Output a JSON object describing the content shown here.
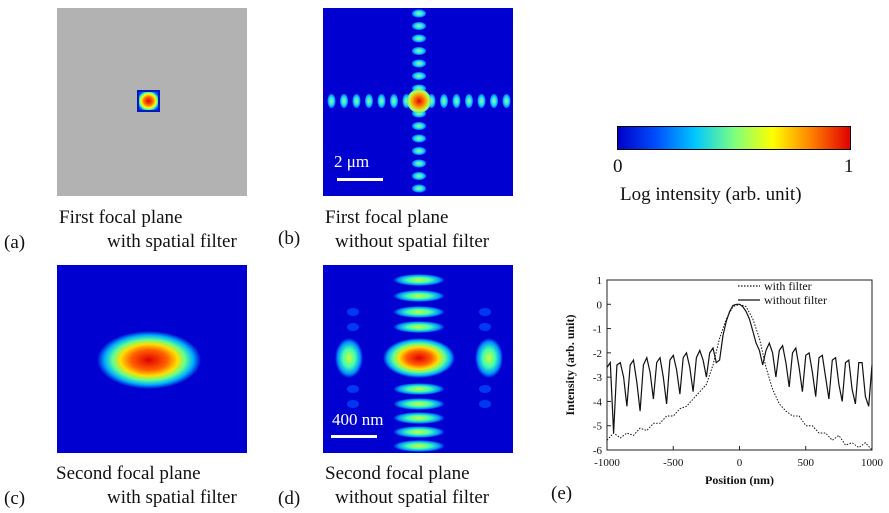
{
  "panels": {
    "a": {
      "tag": "(a)",
      "caption1": "First focal plane",
      "caption2": "with spatial filter"
    },
    "b": {
      "tag": "(b)",
      "caption1": "First focal plane",
      "caption2": "without spatial filter",
      "scale_label": "2 μm"
    },
    "c": {
      "tag": "(c)",
      "caption1": "Second focal plane",
      "caption2": "with spatial filter"
    },
    "d": {
      "tag": "(d)",
      "caption1": "Second focal plane",
      "caption2": "without spatial filter",
      "scale_label": "400 nm"
    },
    "e": {
      "tag": "(e)"
    }
  },
  "colorbar": {
    "min_label": "0",
    "max_label": "1",
    "title": "Log intensity (arb. unit)",
    "colors": [
      "#0000c8",
      "#0050ff",
      "#00c8ff",
      "#7cff80",
      "#ffff00",
      "#ff8000",
      "#e00000"
    ]
  },
  "chart_data": {
    "type": "line",
    "xlabel": "Position (nm)",
    "ylabel": "Intensity (arb. unit)",
    "xlim": [
      -1000,
      1000
    ],
    "ylim": [
      -6,
      1
    ],
    "xticks": [
      "-1000",
      "-500",
      "0",
      "500",
      "1000"
    ],
    "yticks": [
      "1",
      "0",
      "-1",
      "-2",
      "-3",
      "-4",
      "-5",
      "-6"
    ],
    "legend_position": "top-right",
    "series": [
      {
        "name": "with filter",
        "style": "dotted",
        "x": [
          -1000,
          -950,
          -900,
          -850,
          -800,
          -750,
          -700,
          -650,
          -600,
          -550,
          -500,
          -450,
          -400,
          -350,
          -300,
          -250,
          -200,
          -150,
          -100,
          -50,
          0,
          50,
          100,
          150,
          200,
          250,
          300,
          350,
          400,
          450,
          500,
          550,
          600,
          650,
          700,
          750,
          800,
          850,
          900,
          950,
          1000
        ],
        "values": [
          -5.6,
          -5.3,
          -5.5,
          -5.3,
          -5.4,
          -5.1,
          -5.2,
          -4.9,
          -4.9,
          -4.6,
          -4.6,
          -4.3,
          -4.2,
          -3.9,
          -3.6,
          -3.3,
          -2.5,
          -1.4,
          -0.6,
          -0.1,
          0,
          -0.1,
          -0.6,
          -1.4,
          -2.6,
          -3.5,
          -4.1,
          -4.4,
          -4.6,
          -4.6,
          -5.0,
          -5.0,
          -5.3,
          -5.3,
          -5.6,
          -5.4,
          -5.8,
          -5.7,
          -5.9,
          -5.7,
          -6.0
        ]
      },
      {
        "name": "without filter",
        "style": "solid",
        "x": [
          -1000,
          -975,
          -950,
          -925,
          -900,
          -875,
          -850,
          -825,
          -800,
          -775,
          -750,
          -725,
          -700,
          -675,
          -650,
          -625,
          -600,
          -575,
          -550,
          -525,
          -500,
          -475,
          -450,
          -425,
          -400,
          -375,
          -350,
          -325,
          -300,
          -275,
          -250,
          -225,
          -200,
          -175,
          -150,
          -125,
          -100,
          -75,
          -50,
          -25,
          0,
          25,
          50,
          75,
          100,
          125,
          150,
          175,
          200,
          225,
          250,
          275,
          300,
          325,
          350,
          375,
          400,
          425,
          450,
          475,
          500,
          525,
          550,
          575,
          600,
          625,
          650,
          675,
          700,
          725,
          750,
          775,
          800,
          825,
          850,
          875,
          900,
          925,
          950,
          975,
          1000
        ],
        "values": [
          -2.6,
          -2.4,
          -5.3,
          -2.5,
          -2.4,
          -3.0,
          -4.2,
          -2.5,
          -2.3,
          -3.2,
          -4.4,
          -2.5,
          -2.2,
          -2.8,
          -3.9,
          -2.4,
          -2.2,
          -3.0,
          -4.1,
          -2.3,
          -2.1,
          -2.7,
          -3.7,
          -2.2,
          -2.0,
          -2.6,
          -3.6,
          -2.2,
          -1.9,
          -2.3,
          -3.0,
          -2.0,
          -1.8,
          -2.4,
          -2.3,
          -1.3,
          -0.7,
          -0.3,
          -0.05,
          0,
          0,
          -0.1,
          -0.3,
          -0.6,
          -1.1,
          -1.6,
          -1.9,
          -2.5,
          -1.9,
          -1.6,
          -2.0,
          -3.0,
          -1.9,
          -1.7,
          -2.4,
          -3.4,
          -2.0,
          -1.8,
          -2.6,
          -3.6,
          -2.1,
          -2.0,
          -2.8,
          -3.8,
          -2.2,
          -2.1,
          -3.0,
          -3.9,
          -2.3,
          -2.2,
          -3.3,
          -4.0,
          -2.4,
          -2.3,
          -3.5,
          -4.1,
          -2.4,
          -2.4,
          -3.8,
          -4.2,
          -2.5
        ]
      }
    ]
  }
}
